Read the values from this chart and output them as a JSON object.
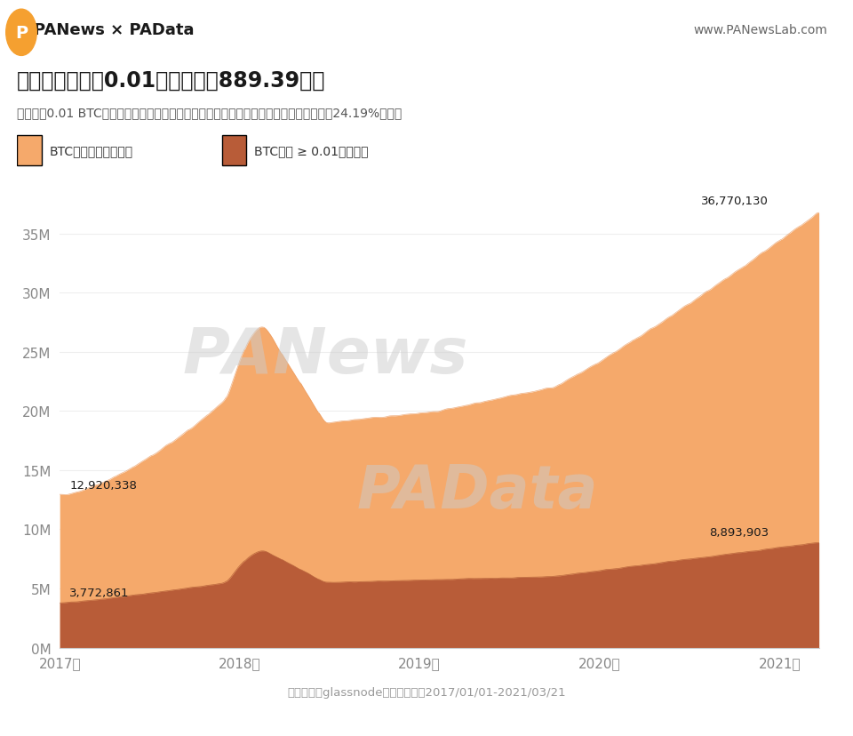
{
  "title": "比特币余额大于0.01的地址约为889.39万个",
  "subtitle": "余额大于0.01 BTC的地址不是找零地址的可能性较高，目前这类地址约占非零地址总数的24.19%左右。",
  "legend1": "BTC余额非零的地址数",
  "legend2": "BTC余额 ≥ 0.01的地址数",
  "color_nonzero": "#F5A96B",
  "color_geq001": "#B85C38",
  "annotation_nonzero_start": "12,920,338",
  "annotation_geq001_start": "3,772,861",
  "annotation_nonzero_end": "36,770,130",
  "annotation_geq001_end": "8,893,903",
  "source": "数据来源：glassnode；统计口径：2017/01/01-2021/03/21",
  "watermark": "PANews",
  "watermark2": "PAData",
  "header_left": "PANews × PAData",
  "header_right": "www.PANewsLab.com",
  "bg_color": "#FFFFFF",
  "ylabel_color": "#888888",
  "ytick_labels": [
    "0M",
    "5M",
    "10M",
    "15M",
    "20M",
    "25M",
    "30M",
    "35M"
  ],
  "ytick_values": [
    0,
    5000000,
    10000000,
    15000000,
    20000000,
    25000000,
    30000000,
    35000000
  ],
  "xtick_labels": [
    "2017年",
    "2018年",
    "2019年",
    "2020年",
    "2021年"
  ]
}
